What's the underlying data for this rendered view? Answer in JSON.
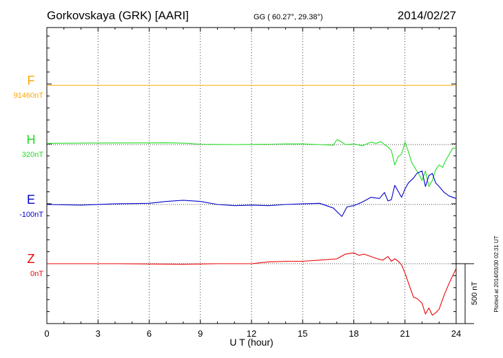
{
  "header": {
    "station": "Gorkovskaya (GRK)  [AARI]",
    "coords": "GG ( 60.27°,  29.38°)",
    "date": "2014/02/27"
  },
  "footer": {
    "plotted": "Plotted at 2014/03/30 02:31  UT"
  },
  "colors": {
    "F": "#ffa500",
    "H": "#22dd22",
    "E": "#0000cc",
    "Z": "#ee0000"
  },
  "chart_data": {
    "type": "line",
    "title": "",
    "xlabel": "U T (hour)",
    "ylabel": "",
    "xlim": [
      0,
      24
    ],
    "x_ticks": [
      0,
      3,
      6,
      9,
      12,
      15,
      18,
      21,
      24
    ],
    "x_tick_labels": [
      "0",
      "3",
      "6",
      "9",
      "12",
      "15",
      "18",
      "21",
      "24"
    ],
    "grid": true,
    "scale_bar": {
      "label": "500 nT",
      "value_nT": 500
    },
    "series": [
      {
        "name": "F",
        "baseline_label": "91460nT",
        "color": "#ffa500",
        "points": [
          [
            0,
            0
          ],
          [
            24,
            0
          ]
        ]
      },
      {
        "name": "H",
        "baseline_label": "320nT",
        "color": "#22dd22",
        "points": [
          [
            0,
            10
          ],
          [
            2,
            12
          ],
          [
            4,
            13
          ],
          [
            6,
            14
          ],
          [
            7,
            15
          ],
          [
            8,
            12
          ],
          [
            9,
            3
          ],
          [
            10,
            1
          ],
          [
            11,
            0
          ],
          [
            12,
            1
          ],
          [
            13,
            3
          ],
          [
            14,
            6
          ],
          [
            15,
            5
          ],
          [
            16,
            0
          ],
          [
            16.8,
            -5
          ],
          [
            17,
            40
          ],
          [
            17.2,
            30
          ],
          [
            17.5,
            0
          ],
          [
            18,
            5
          ],
          [
            18.5,
            -10
          ],
          [
            19,
            20
          ],
          [
            19.3,
            10
          ],
          [
            19.6,
            25
          ],
          [
            19.8,
            0
          ],
          [
            20,
            -20
          ],
          [
            20.2,
            -50
          ],
          [
            20.4,
            -170
          ],
          [
            20.6,
            -100
          ],
          [
            20.8,
            -80
          ],
          [
            21,
            20
          ],
          [
            21.2,
            -60
          ],
          [
            21.4,
            -150
          ],
          [
            21.6,
            -200
          ],
          [
            21.8,
            -240
          ],
          [
            22,
            -300
          ],
          [
            22.2,
            -220
          ],
          [
            22.4,
            -350
          ],
          [
            22.6,
            -300
          ],
          [
            22.8,
            -210
          ],
          [
            23,
            -170
          ],
          [
            23.2,
            -190
          ],
          [
            23.4,
            -130
          ],
          [
            23.6,
            -80
          ],
          [
            23.8,
            -30
          ],
          [
            24,
            -30
          ]
        ]
      },
      {
        "name": "E",
        "baseline_label": "-100nT",
        "color": "#0000cc",
        "points": [
          [
            0,
            0
          ],
          [
            2,
            -5
          ],
          [
            4,
            5
          ],
          [
            6,
            10
          ],
          [
            7,
            25
          ],
          [
            8,
            35
          ],
          [
            9,
            25
          ],
          [
            10,
            0
          ],
          [
            11,
            -10
          ],
          [
            12,
            -5
          ],
          [
            13,
            -10
          ],
          [
            14,
            0
          ],
          [
            15,
            5
          ],
          [
            16,
            10
          ],
          [
            16.8,
            -30
          ],
          [
            17.3,
            -100
          ],
          [
            17.6,
            -20
          ],
          [
            18,
            -10
          ],
          [
            18.5,
            20
          ],
          [
            19,
            60
          ],
          [
            19.5,
            50
          ],
          [
            19.8,
            100
          ],
          [
            20,
            30
          ],
          [
            20.2,
            40
          ],
          [
            20.4,
            160
          ],
          [
            20.6,
            110
          ],
          [
            20.8,
            60
          ],
          [
            21,
            130
          ],
          [
            21.2,
            180
          ],
          [
            21.5,
            220
          ],
          [
            21.7,
            260
          ],
          [
            22,
            280
          ],
          [
            22.2,
            150
          ],
          [
            22.4,
            240
          ],
          [
            22.6,
            260
          ],
          [
            22.8,
            180
          ],
          [
            23,
            150
          ],
          [
            23.3,
            100
          ],
          [
            23.6,
            70
          ],
          [
            24,
            50
          ]
        ]
      },
      {
        "name": "Z",
        "baseline_label": "0nT",
        "color": "#ee0000",
        "points": [
          [
            0,
            0
          ],
          [
            4,
            0
          ],
          [
            8,
            -5
          ],
          [
            10,
            0
          ],
          [
            12,
            0
          ],
          [
            13,
            15
          ],
          [
            14,
            20
          ],
          [
            15,
            20
          ],
          [
            16,
            30
          ],
          [
            17,
            40
          ],
          [
            17.5,
            80
          ],
          [
            18,
            90
          ],
          [
            18.3,
            70
          ],
          [
            18.6,
            80
          ],
          [
            19,
            60
          ],
          [
            19.4,
            40
          ],
          [
            19.7,
            30
          ],
          [
            20,
            60
          ],
          [
            20.2,
            20
          ],
          [
            20.4,
            40
          ],
          [
            20.6,
            20
          ],
          [
            20.8,
            -10
          ],
          [
            21,
            -80
          ],
          [
            21.2,
            -160
          ],
          [
            21.5,
            -280
          ],
          [
            21.7,
            -290
          ],
          [
            22,
            -330
          ],
          [
            22.2,
            -420
          ],
          [
            22.4,
            -370
          ],
          [
            22.6,
            -430
          ],
          [
            22.8,
            -410
          ],
          [
            23,
            -380
          ],
          [
            23.3,
            -260
          ],
          [
            23.6,
            -160
          ],
          [
            24,
            -40
          ]
        ]
      }
    ]
  }
}
